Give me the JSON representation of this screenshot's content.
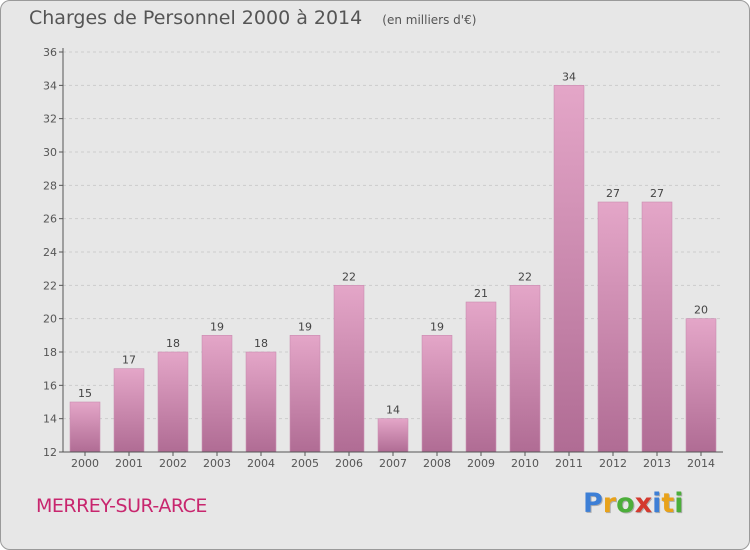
{
  "header": {
    "title": "Charges de Personnel 2000 à 2014",
    "subtitle": "(en milliers d'€)"
  },
  "commune": "MERREY-SUR-ARCE",
  "logo": {
    "letters": [
      "P",
      "r",
      "o",
      "x",
      "i",
      "t",
      "i"
    ],
    "colors": [
      "#3d7fd6",
      "#e8a21a",
      "#4cae3a",
      "#d43a2f",
      "#3d7fd6",
      "#e8a21a",
      "#4cae3a"
    ]
  },
  "colors": {
    "bar_top": "#e4a6c8",
    "bar_bottom": "#b06c94",
    "bar_edge": "#c98bb0",
    "axis": "#555555",
    "grid": "#cccccc",
    "label": "#444444"
  },
  "chart_data": {
    "type": "bar",
    "title": "Charges de Personnel 2000 à 2014",
    "subtitle": "(en milliers d'€)",
    "categories": [
      "2000",
      "2001",
      "2002",
      "2003",
      "2004",
      "2005",
      "2006",
      "2007",
      "2008",
      "2009",
      "2010",
      "2011",
      "2012",
      "2013",
      "2014"
    ],
    "values": [
      15,
      17,
      18,
      19,
      18,
      19,
      22,
      14,
      19,
      21,
      22,
      34,
      27,
      27,
      20
    ],
    "ylim": [
      12,
      36
    ],
    "yticks": [
      12,
      14,
      16,
      18,
      20,
      22,
      24,
      26,
      28,
      30,
      32,
      34,
      36
    ],
    "grid": true,
    "xlabel": "",
    "ylabel": ""
  }
}
